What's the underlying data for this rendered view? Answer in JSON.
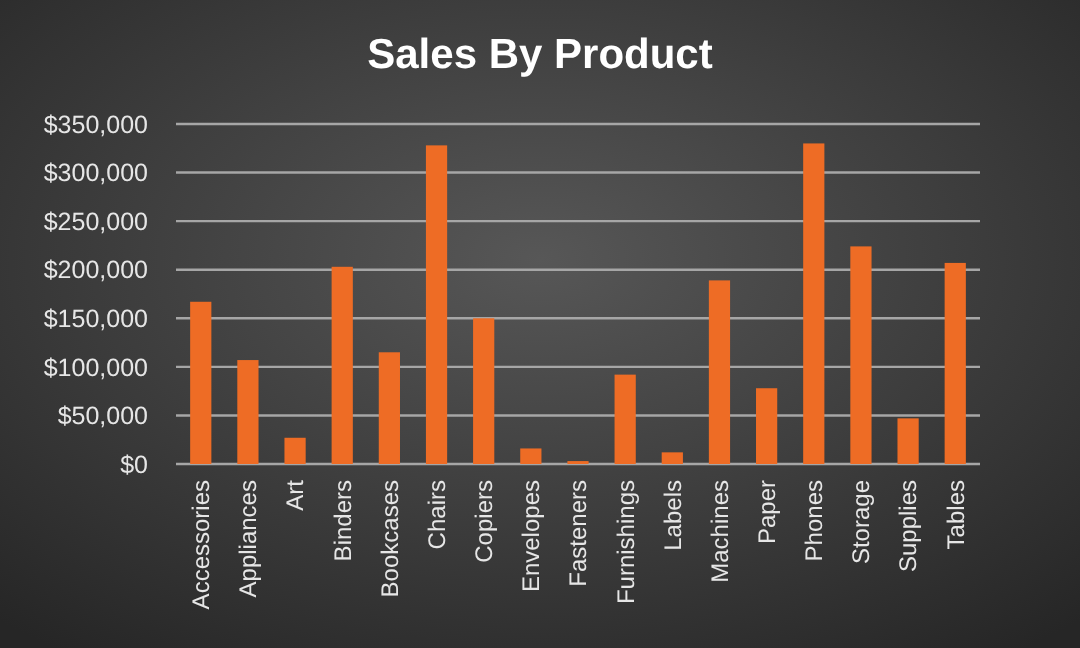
{
  "chart_data": {
    "type": "bar",
    "title": "Sales By Product",
    "categories": [
      "Accessories",
      "Appliances",
      "Art",
      "Binders",
      "Bookcases",
      "Chairs",
      "Copiers",
      "Envelopes",
      "Fasteners",
      "Furnishings",
      "Labels",
      "Machines",
      "Paper",
      "Phones",
      "Storage",
      "Supplies",
      "Tables"
    ],
    "values": [
      167000,
      107000,
      27000,
      203000,
      115000,
      328000,
      150000,
      16000,
      3000,
      92000,
      12000,
      189000,
      78000,
      330000,
      224000,
      47000,
      207000
    ],
    "color": "#ee6c25",
    "ylim": [
      0,
      350000
    ],
    "yticks": [
      {
        "value": 0,
        "label": "$0"
      },
      {
        "value": 50000,
        "label": "$50,000"
      },
      {
        "value": 100000,
        "label": "$100,000"
      },
      {
        "value": 150000,
        "label": "$150,000"
      },
      {
        "value": 200000,
        "label": "$200,000"
      },
      {
        "value": 250000,
        "label": "$250,000"
      },
      {
        "value": 300000,
        "label": "$300,000"
      },
      {
        "value": 350000,
        "label": "$350,000"
      }
    ],
    "grid": true
  }
}
